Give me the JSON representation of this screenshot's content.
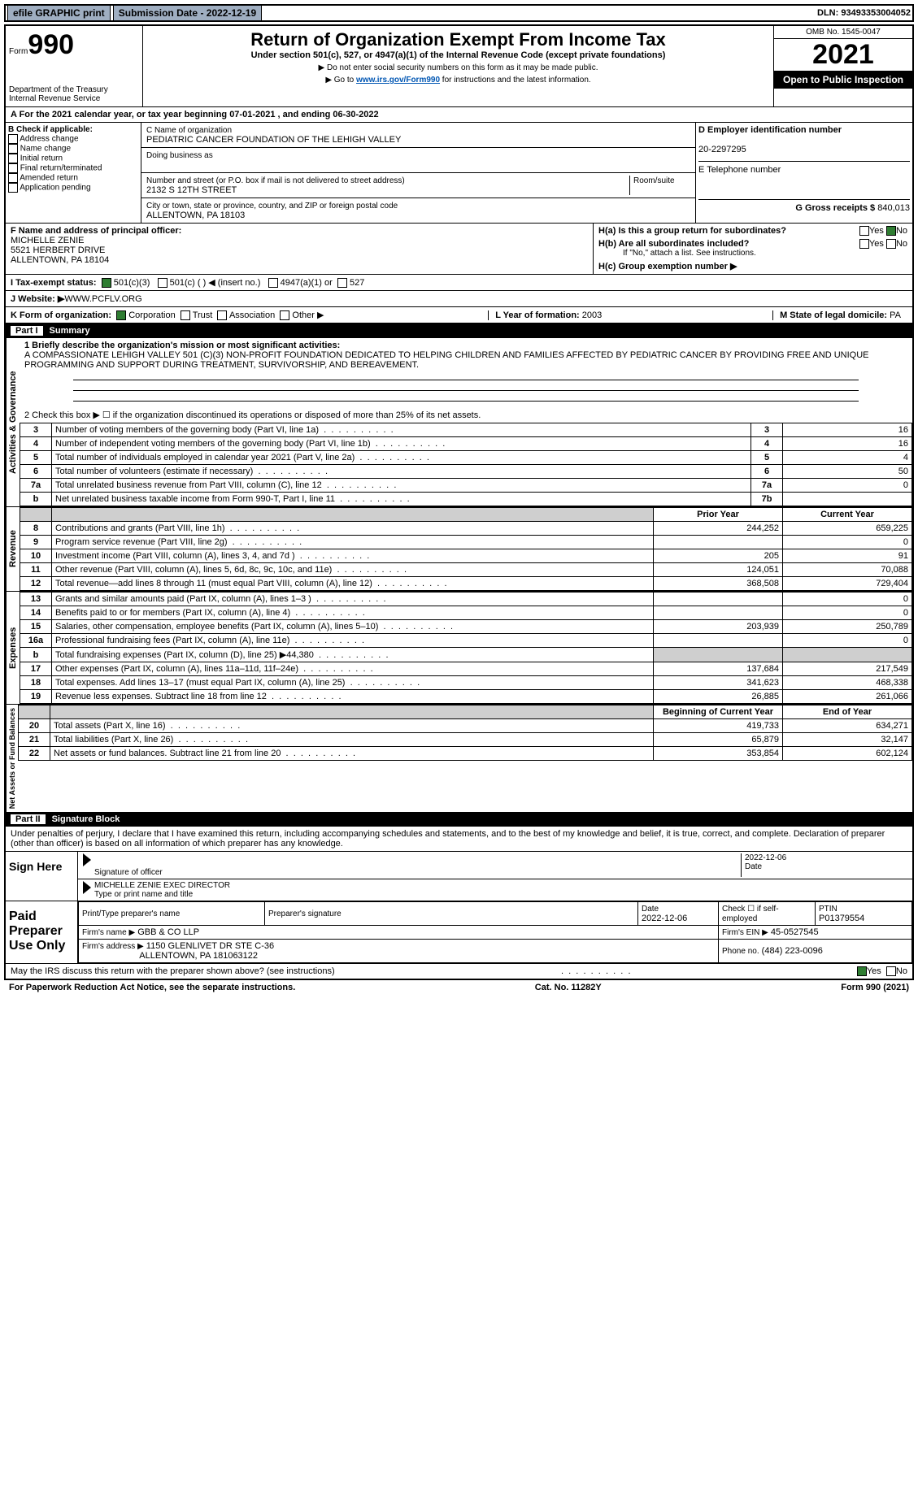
{
  "topbar": {
    "efile": "efile GRAPHIC print",
    "sub_label": "Submission Date - 2022-12-19",
    "dln": "DLN: 93493353004052"
  },
  "header": {
    "form_prefix": "Form",
    "form_no": "990",
    "dept": "Department of the Treasury",
    "irs": "Internal Revenue Service",
    "title": "Return of Organization Exempt From Income Tax",
    "subtitle": "Under section 501(c), 527, or 4947(a)(1) of the Internal Revenue Code (except private foundations)",
    "note1": "▶ Do not enter social security numbers on this form as it may be made public.",
    "note2_pre": "▶ Go to ",
    "note2_link": "www.irs.gov/Form990",
    "note2_post": " for instructions and the latest information.",
    "omb": "OMB No. 1545-0047",
    "year": "2021",
    "open": "Open to Public Inspection"
  },
  "rowA": {
    "text": "A For the 2021 calendar year, or tax year beginning 07-01-2021    , and ending 06-30-2022"
  },
  "colB": {
    "title": "B Check if applicable:",
    "items": [
      "Address change",
      "Name change",
      "Initial return",
      "Final return/terminated",
      "Amended return",
      "Application pending"
    ]
  },
  "colC": {
    "name_label": "C Name of organization",
    "name": "PEDIATRIC CANCER FOUNDATION OF THE LEHIGH VALLEY",
    "dba_label": "Doing business as",
    "dba": "",
    "addr_label": "Number and street (or P.O. box if mail is not delivered to street address)",
    "room_label": "Room/suite",
    "street": "2132 S 12TH STREET",
    "city_label": "City or town, state or province, country, and ZIP or foreign postal code",
    "city": "ALLENTOWN, PA  18103"
  },
  "colD": {
    "ein_label": "D Employer identification number",
    "ein": "20-2297295",
    "phone_label": "E Telephone number",
    "phone": "",
    "gross_label": "G Gross receipts $",
    "gross": "840,013"
  },
  "colF": {
    "label": "F  Name and address of principal officer:",
    "name": "MICHELLE ZENIE",
    "addr1": "5521 HERBERT DRIVE",
    "addr2": "ALLENTOWN, PA  18104"
  },
  "colH": {
    "ha": "H(a)  Is this a group return for subordinates?",
    "hb": "H(b)  Are all subordinates included?",
    "hb_note": "If \"No,\" attach a list. See instructions.",
    "hc": "H(c)  Group exemption number ▶",
    "yes": "Yes",
    "no": "No"
  },
  "rowI": {
    "label": "I  Tax-exempt status:",
    "o1": "501(c)(3)",
    "o2": "501(c) (  ) ◀ (insert no.)",
    "o3": "4947(a)(1) or",
    "o4": "527"
  },
  "rowJ": {
    "label": "J  Website: ▶",
    "value": " WWW.PCFLV.ORG"
  },
  "rowK": {
    "label": "K Form of organization:",
    "opts": [
      "Corporation",
      "Trust",
      "Association",
      "Other ▶"
    ],
    "l_label": "L Year of formation: ",
    "l_val": "2003",
    "m_label": "M State of legal domicile: ",
    "m_val": "PA"
  },
  "part1": {
    "label": "Part I",
    "title": "Summary"
  },
  "mission": {
    "q": "1  Briefly describe the organization's mission or most significant activities:",
    "text": "A COMPASSIONATE LEHIGH VALLEY 501 (C)(3) NON-PROFIT FOUNDATION DEDICATED TO HELPING CHILDREN AND FAMILIES AFFECTED BY PEDIATRIC CANCER BY PROVIDING FREE AND UNIQUE PROGRAMMING AND SUPPORT DURING TREATMENT, SURVIVORSHIP, AND BEREAVEMENT."
  },
  "gov": {
    "q2": "2   Check this box ▶ ☐  if the organization discontinued its operations or disposed of more than 25% of its net assets.",
    "rows": [
      {
        "n": "3",
        "t": "Number of voting members of the governing body (Part VI, line 1a)",
        "b": "3",
        "v": "16"
      },
      {
        "n": "4",
        "t": "Number of independent voting members of the governing body (Part VI, line 1b)",
        "b": "4",
        "v": "16"
      },
      {
        "n": "5",
        "t": "Total number of individuals employed in calendar year 2021 (Part V, line 2a)",
        "b": "5",
        "v": "4"
      },
      {
        "n": "6",
        "t": "Total number of volunteers (estimate if necessary)",
        "b": "6",
        "v": "50"
      },
      {
        "n": "7a",
        "t": "Total unrelated business revenue from Part VIII, column (C), line 12",
        "b": "7a",
        "v": "0"
      },
      {
        "n": "b",
        "t": "Net unrelated business taxable income from Form 990-T, Part I, line 11",
        "b": "7b",
        "v": ""
      }
    ]
  },
  "rev": {
    "h1": "Prior Year",
    "h2": "Current Year",
    "rows": [
      {
        "n": "8",
        "t": "Contributions and grants (Part VIII, line 1h)",
        "p": "244,252",
        "c": "659,225"
      },
      {
        "n": "9",
        "t": "Program service revenue (Part VIII, line 2g)",
        "p": "",
        "c": "0"
      },
      {
        "n": "10",
        "t": "Investment income (Part VIII, column (A), lines 3, 4, and 7d )",
        "p": "205",
        "c": "91"
      },
      {
        "n": "11",
        "t": "Other revenue (Part VIII, column (A), lines 5, 6d, 8c, 9c, 10c, and 11e)",
        "p": "124,051",
        "c": "70,088"
      },
      {
        "n": "12",
        "t": "Total revenue—add lines 8 through 11 (must equal Part VIII, column (A), line 12)",
        "p": "368,508",
        "c": "729,404"
      }
    ]
  },
  "exp": {
    "rows": [
      {
        "n": "13",
        "t": "Grants and similar amounts paid (Part IX, column (A), lines 1–3 )",
        "p": "",
        "c": "0"
      },
      {
        "n": "14",
        "t": "Benefits paid to or for members (Part IX, column (A), line 4)",
        "p": "",
        "c": "0"
      },
      {
        "n": "15",
        "t": "Salaries, other compensation, employee benefits (Part IX, column (A), lines 5–10)",
        "p": "203,939",
        "c": "250,789"
      },
      {
        "n": "16a",
        "t": "Professional fundraising fees (Part IX, column (A), line 11e)",
        "p": "",
        "c": "0"
      },
      {
        "n": "b",
        "t": "Total fundraising expenses (Part IX, column (D), line 25) ▶44,380",
        "p": "grey",
        "c": "grey"
      },
      {
        "n": "17",
        "t": "Other expenses (Part IX, column (A), lines 11a–11d, 11f–24e)",
        "p": "137,684",
        "c": "217,549"
      },
      {
        "n": "18",
        "t": "Total expenses. Add lines 13–17 (must equal Part IX, column (A), line 25)",
        "p": "341,623",
        "c": "468,338"
      },
      {
        "n": "19",
        "t": "Revenue less expenses. Subtract line 18 from line 12",
        "p": "26,885",
        "c": "261,066"
      }
    ]
  },
  "net": {
    "h1": "Beginning of Current Year",
    "h2": "End of Year",
    "rows": [
      {
        "n": "20",
        "t": "Total assets (Part X, line 16)",
        "p": "419,733",
        "c": "634,271"
      },
      {
        "n": "21",
        "t": "Total liabilities (Part X, line 26)",
        "p": "65,879",
        "c": "32,147"
      },
      {
        "n": "22",
        "t": "Net assets or fund balances. Subtract line 21 from line 20",
        "p": "353,854",
        "c": "602,124"
      }
    ]
  },
  "part2": {
    "label": "Part II",
    "title": "Signature Block"
  },
  "penalty": "Under penalties of perjury, I declare that I have examined this return, including accompanying schedules and statements, and to the best of my knowledge and belief, it is true, correct, and complete. Declaration of preparer (other than officer) is based on all information of which preparer has any knowledge.",
  "sign": {
    "label": "Sign Here",
    "sig_label": "Signature of officer",
    "date": "2022-12-06",
    "date_label": "Date",
    "name": "MICHELLE ZENIE  EXEC DIRECTOR",
    "name_label": "Type or print name and title"
  },
  "paid": {
    "label": "Paid Preparer Use Only",
    "h1": "Print/Type preparer's name",
    "h2": "Preparer's signature",
    "h3": "Date",
    "date": "2022-12-06",
    "check_label": "Check ☐ if self-employed",
    "ptin_label": "PTIN",
    "ptin": "P01379554",
    "firm_name_label": "Firm's name    ▶",
    "firm_name": "GBB & CO LLP",
    "firm_ein_label": "Firm's EIN ▶",
    "firm_ein": "45-0527545",
    "firm_addr_label": "Firm's address ▶",
    "firm_addr1": "1150 GLENLIVET DR STE C-36",
    "firm_addr2": "ALLENTOWN, PA  181063122",
    "phone_label": "Phone no.",
    "phone": "(484) 223-0096"
  },
  "discuss": {
    "q": "May the IRS discuss this return with the preparer shown above? (see instructions)",
    "yes": "Yes",
    "no": "No"
  },
  "footer": {
    "l": "For Paperwork Reduction Act Notice, see the separate instructions.",
    "m": "Cat. No. 11282Y",
    "r": "Form 990 (2021)"
  },
  "tabs": {
    "gov": "Activities & Governance",
    "rev": "Revenue",
    "exp": "Expenses",
    "net": "Net Assets or Fund Balances"
  }
}
